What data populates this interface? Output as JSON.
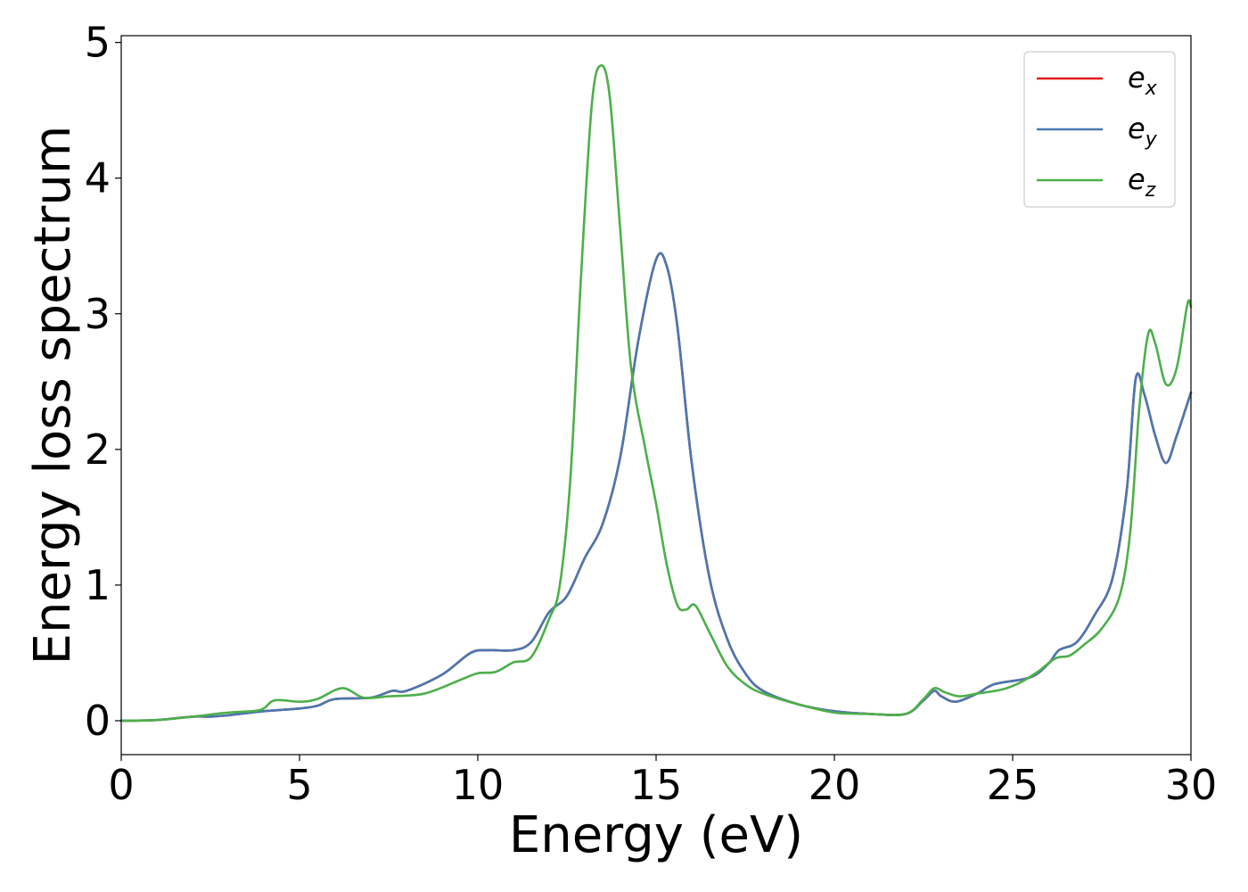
{
  "chart_data": {
    "type": "line",
    "title": "",
    "xlabel": "Energy (eV)",
    "ylabel": "Energy loss spectrum",
    "xlim": [
      0,
      30
    ],
    "ylim": [
      -0.25,
      5.05
    ],
    "xticks": [
      0,
      5,
      10,
      15,
      20,
      25,
      30
    ],
    "xtick_labels": [
      "0",
      "5",
      "10",
      "15",
      "20",
      "25",
      "30"
    ],
    "yticks": [
      0,
      1,
      2,
      3,
      4,
      5
    ],
    "ytick_labels": [
      "0",
      "1",
      "2",
      "3",
      "4",
      "5"
    ],
    "grid": false,
    "legend_position": "top-right",
    "series": [
      {
        "name": "e_x",
        "label_main": "e",
        "label_sub": "x",
        "color": "#e41a1c",
        "x": [
          0,
          1,
          2,
          2.5,
          3,
          4,
          5,
          5.5,
          6,
          7,
          7.6,
          8,
          9,
          9.8,
          10.3,
          11,
          11.5,
          12,
          12.5,
          13,
          13.5,
          14,
          14.5,
          15,
          15.3,
          15.6,
          16,
          16.5,
          17,
          17.5,
          18,
          19,
          20,
          21,
          22,
          22.5,
          22.8,
          23,
          23.4,
          24,
          24.5,
          25.5,
          26,
          26.3,
          26.8,
          27.3,
          27.8,
          28.2,
          28.45,
          28.7,
          29,
          29.3,
          29.6,
          30
        ],
        "y": [
          0,
          0.005,
          0.03,
          0.03,
          0.04,
          0.07,
          0.09,
          0.11,
          0.16,
          0.17,
          0.22,
          0.22,
          0.34,
          0.5,
          0.52,
          0.52,
          0.58,
          0.8,
          0.92,
          1.2,
          1.45,
          1.95,
          2.8,
          3.4,
          3.35,
          2.9,
          1.9,
          1.05,
          0.6,
          0.35,
          0.22,
          0.12,
          0.07,
          0.05,
          0.05,
          0.15,
          0.22,
          0.18,
          0.14,
          0.2,
          0.27,
          0.32,
          0.42,
          0.52,
          0.58,
          0.78,
          1.05,
          1.7,
          2.52,
          2.4,
          2.1,
          1.9,
          2.1,
          2.42
        ]
      },
      {
        "name": "e_y",
        "label_main": "e",
        "label_sub": "y",
        "color": "#4a78b0",
        "x": [
          0,
          1,
          2,
          2.5,
          3,
          4,
          5,
          5.5,
          6,
          7,
          7.6,
          8,
          9,
          9.8,
          10.3,
          11,
          11.5,
          12,
          12.5,
          13,
          13.5,
          14,
          14.5,
          15,
          15.3,
          15.6,
          16,
          16.5,
          17,
          17.5,
          18,
          19,
          20,
          21,
          22,
          22.5,
          22.8,
          23,
          23.4,
          24,
          24.5,
          25.5,
          26,
          26.3,
          26.8,
          27.3,
          27.8,
          28.2,
          28.45,
          28.7,
          29,
          29.3,
          29.6,
          30
        ],
        "y": [
          0,
          0.005,
          0.03,
          0.03,
          0.04,
          0.07,
          0.09,
          0.11,
          0.16,
          0.17,
          0.22,
          0.22,
          0.34,
          0.5,
          0.52,
          0.52,
          0.58,
          0.8,
          0.92,
          1.2,
          1.45,
          1.95,
          2.8,
          3.4,
          3.35,
          2.9,
          1.9,
          1.05,
          0.6,
          0.35,
          0.22,
          0.12,
          0.07,
          0.05,
          0.05,
          0.15,
          0.22,
          0.18,
          0.14,
          0.2,
          0.27,
          0.32,
          0.42,
          0.52,
          0.58,
          0.78,
          1.05,
          1.7,
          2.52,
          2.4,
          2.1,
          1.9,
          2.1,
          2.42
        ]
      },
      {
        "name": "e_z",
        "label_main": "e",
        "label_sub": "z",
        "color": "#4daf4a",
        "x": [
          0,
          1,
          2,
          3,
          3.9,
          4.3,
          5,
          5.5,
          6.2,
          6.8,
          7.5,
          8.5,
          9.5,
          10,
          10.5,
          11,
          11.5,
          12,
          12.3,
          12.6,
          12.9,
          13.2,
          13.45,
          13.7,
          14,
          14.3,
          14.7,
          15,
          15.3,
          15.6,
          15.85,
          16.1,
          16.5,
          17,
          17.5,
          18,
          19,
          20,
          21,
          22,
          22.5,
          22.8,
          23.1,
          23.5,
          24,
          24.7,
          25.2,
          25.7,
          26.2,
          26.6,
          27,
          27.5,
          28,
          28.3,
          28.55,
          28.8,
          29,
          29.3,
          29.6,
          29.9,
          30
        ],
        "y": [
          0,
          0.005,
          0.03,
          0.06,
          0.08,
          0.15,
          0.14,
          0.16,
          0.24,
          0.17,
          0.18,
          0.2,
          0.3,
          0.35,
          0.36,
          0.43,
          0.47,
          0.75,
          1.0,
          1.8,
          3.3,
          4.55,
          4.83,
          4.6,
          3.6,
          2.6,
          2.0,
          1.6,
          1.15,
          0.85,
          0.82,
          0.85,
          0.65,
          0.4,
          0.27,
          0.2,
          0.12,
          0.06,
          0.05,
          0.05,
          0.16,
          0.24,
          0.21,
          0.18,
          0.2,
          0.23,
          0.28,
          0.36,
          0.46,
          0.48,
          0.56,
          0.68,
          0.92,
          1.4,
          2.3,
          2.85,
          2.78,
          2.48,
          2.6,
          3.07,
          3.05
        ]
      }
    ]
  }
}
